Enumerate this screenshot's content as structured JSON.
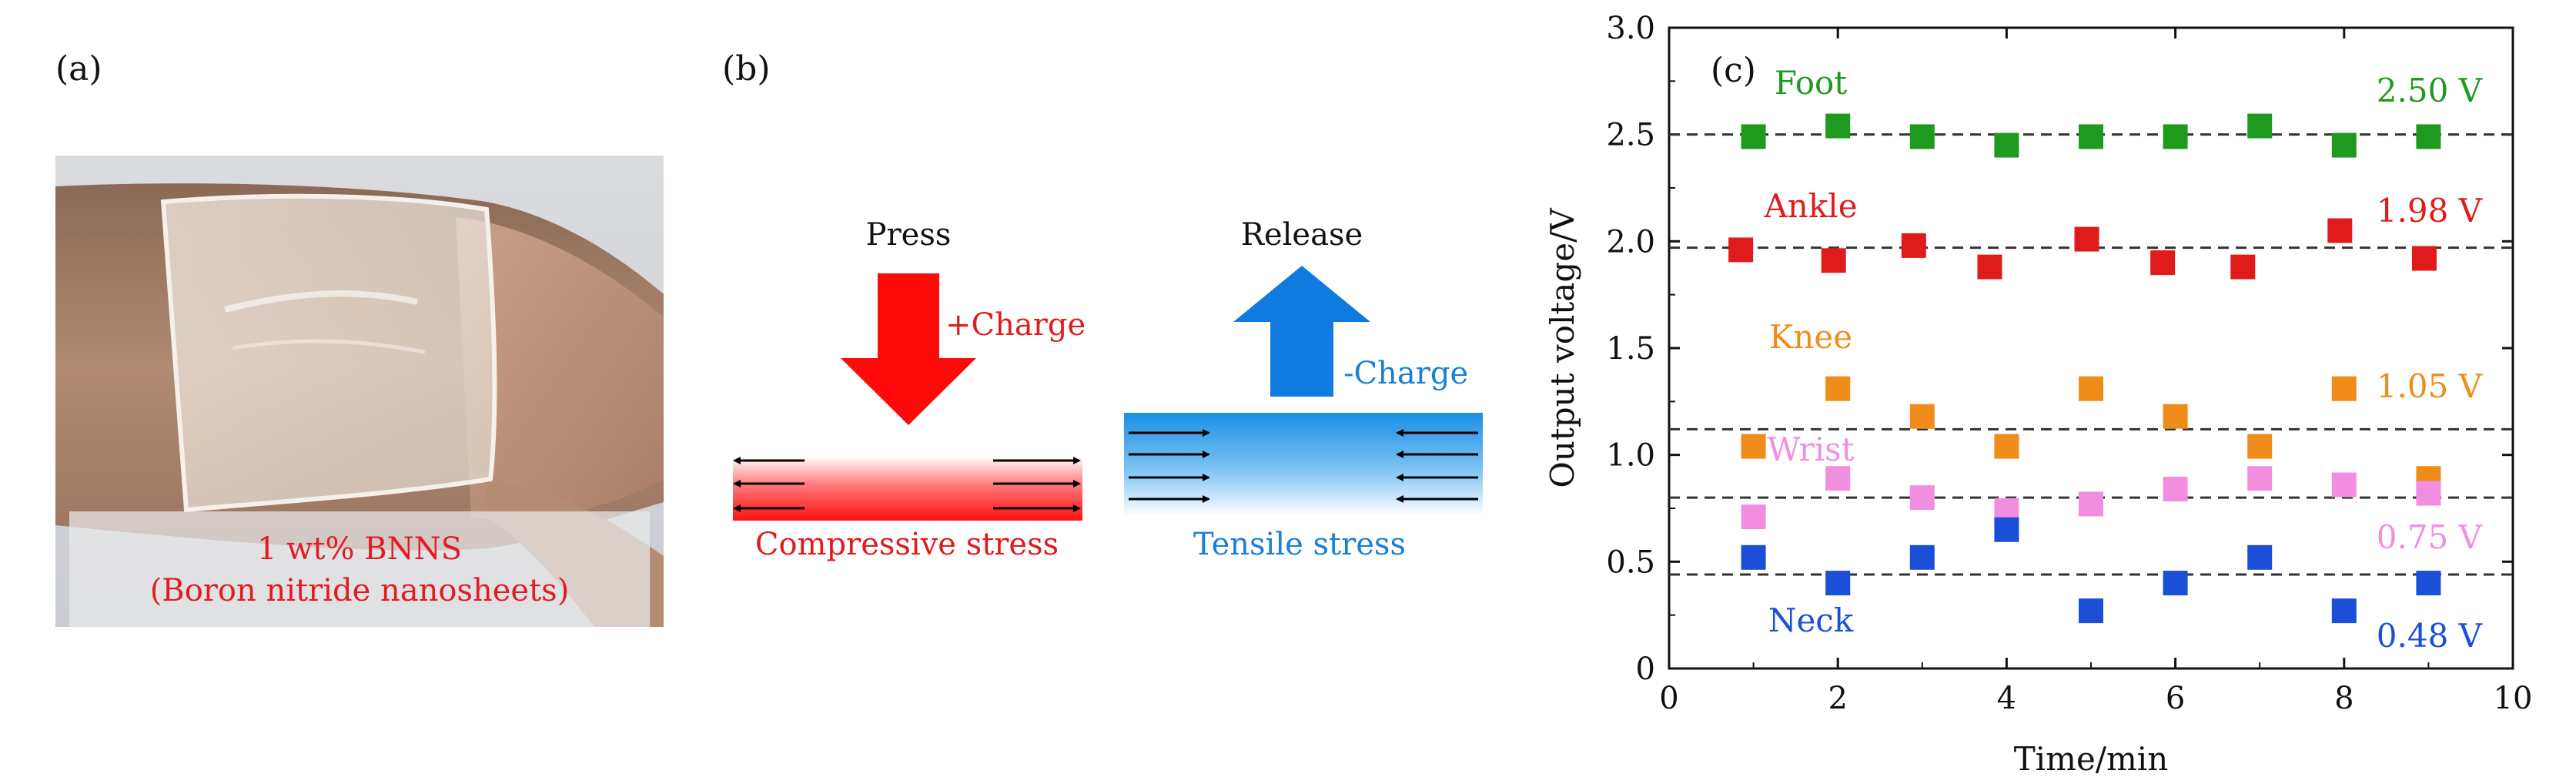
{
  "panel_a": {
    "label": "(a)",
    "caption_line1": "1 wt% BNNS",
    "caption_line2": "(Boron nitride nanosheets)"
  },
  "panel_b": {
    "label": "(b)",
    "press_label": "Press",
    "release_label": "Release",
    "plus_charge": "+Charge",
    "minus_charge": "-Charge",
    "compressive_label": "Compressive stress",
    "tensile_label": "Tensile stress"
  },
  "panel_c": {
    "label": "(c)"
  },
  "colors": {
    "foot": "#1e9a1e",
    "ankle": "#e01b1b",
    "knee": "#f08c1a",
    "wrist": "#f28ee0",
    "neck": "#1b4fd8",
    "axis": "#111111"
  },
  "chart_data": {
    "type": "scatter",
    "xlabel": "Time/min",
    "ylabel": "Output voltage/V",
    "xlim": [
      0,
      10
    ],
    "ylim": [
      0,
      3.0
    ],
    "xticks": [
      0,
      2,
      4,
      6,
      8,
      10
    ],
    "yticks": [
      0,
      0.5,
      1.0,
      1.5,
      2.0,
      2.5,
      3.0
    ],
    "ytick_labels": [
      "0",
      "0.5",
      "1.0",
      "1.5",
      "2.0",
      "2.5",
      "3.0"
    ],
    "series": [
      {
        "key": "foot",
        "name": "Foot",
        "annotation": "2.50 V",
        "ref": 2.5,
        "x": [
          1,
          2,
          3,
          4,
          5,
          6,
          7,
          8,
          9
        ],
        "y": [
          2.49,
          2.54,
          2.49,
          2.45,
          2.49,
          2.49,
          2.54,
          2.45,
          2.49
        ]
      },
      {
        "key": "ankle",
        "name": "Ankle",
        "annotation": "1.98 V",
        "ref": 1.97,
        "x": [
          0.85,
          1.95,
          2.9,
          3.8,
          4.95,
          5.85,
          6.8,
          7.95,
          8.95
        ],
        "y": [
          1.96,
          1.91,
          1.98,
          1.88,
          2.01,
          1.9,
          1.88,
          2.05,
          1.92
        ]
      },
      {
        "key": "knee",
        "name": "Knee",
        "annotation": "1.05 V",
        "ref": 1.12,
        "x": [
          1,
          2,
          3,
          4,
          5,
          6,
          7,
          8,
          9
        ],
        "y": [
          1.04,
          1.31,
          1.18,
          1.04,
          1.31,
          1.18,
          1.04,
          1.31,
          0.89
        ]
      },
      {
        "key": "wrist",
        "name": "Wrist",
        "annotation": "0.75 V",
        "ref": 0.8,
        "x": [
          1,
          2,
          3,
          4,
          5,
          6,
          7,
          8,
          9
        ],
        "y": [
          0.71,
          0.89,
          0.8,
          0.74,
          0.77,
          0.84,
          0.89,
          0.86,
          0.82
        ]
      },
      {
        "key": "neck",
        "name": "Neck",
        "annotation": "0.48 V",
        "ref": 0.44,
        "x": [
          1,
          2,
          3,
          4,
          5,
          6,
          7,
          8,
          9
        ],
        "y": [
          0.52,
          0.4,
          0.52,
          0.65,
          0.27,
          0.4,
          0.52,
          0.27,
          0.4
        ]
      }
    ]
  }
}
